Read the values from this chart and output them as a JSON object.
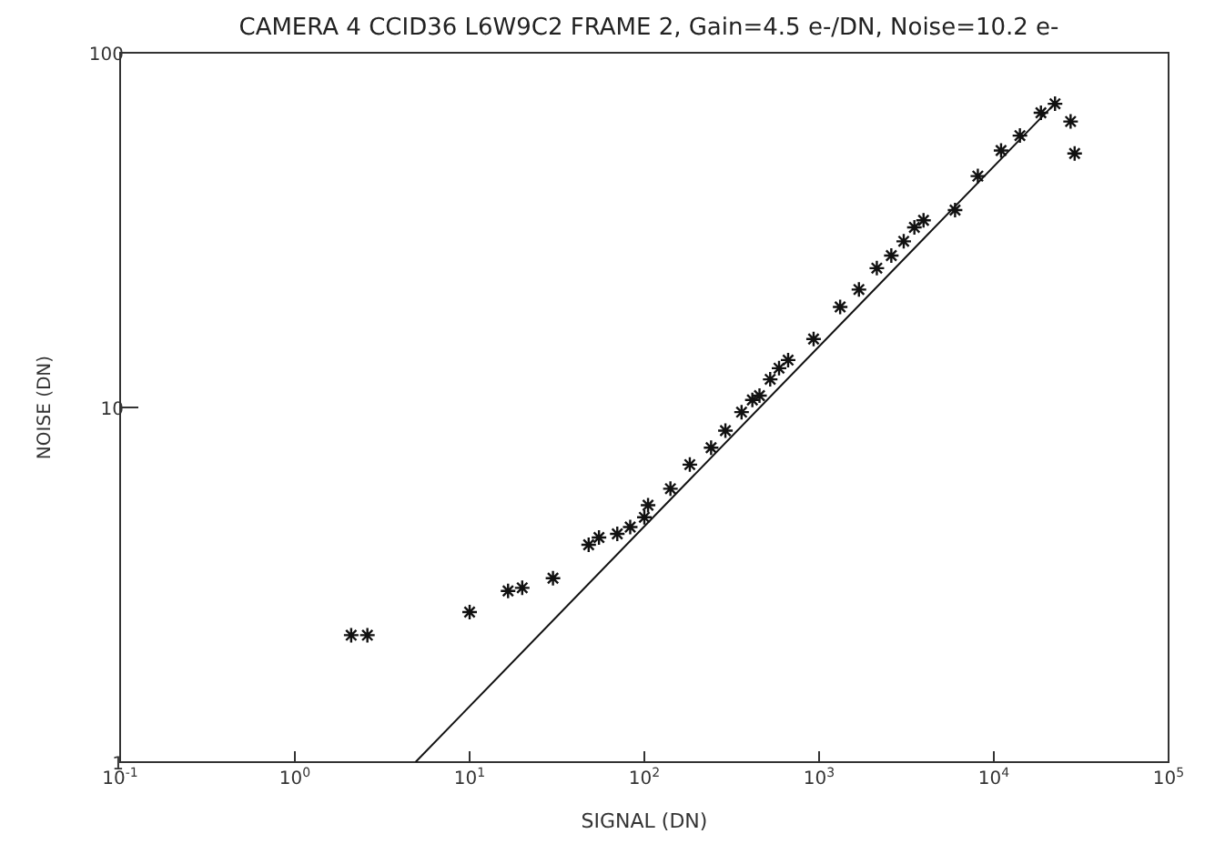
{
  "chart_data": {
    "type": "scatter",
    "title": "CAMERA 4 CCID36 L6W9C2 FRAME 2, Gain=4.5 e-/DN, Noise=10.2 e-",
    "xlabel": "SIGNAL (DN)",
    "ylabel": "NOISE (DN)",
    "log": "xy",
    "grid": false,
    "xlim": [
      0.1,
      100000
    ],
    "xticks": [
      {
        "value": 0.1,
        "label": "10$^{-1}$"
      },
      {
        "value": 1,
        "label": "10$^{0}$"
      },
      {
        "value": 10,
        "label": "10$^{1}$"
      },
      {
        "value": 100,
        "label": "10$^{2}$"
      },
      {
        "value": 1000,
        "label": "10$^{3}$"
      },
      {
        "value": 10000,
        "label": "10$^{4}$"
      },
      {
        "value": 100000,
        "label": "10$^{5}$"
      }
    ],
    "ylim": [
      1,
      100
    ],
    "yticks": [
      1,
      10,
      100
    ],
    "series": [
      {
        "color": "#111111",
        "marker": "cross",
        "x": [
          2.1,
          2.6,
          10,
          16.6,
          20,
          30,
          48,
          55,
          70,
          83,
          100,
          105,
          141,
          182,
          241,
          291,
          360,
          415,
          456,
          525,
          590,
          665,
          930,
          1320,
          1690,
          2140,
          2590,
          3050,
          3510,
          3960,
          6000,
          8100,
          11000,
          14100,
          18600,
          22400,
          27500,
          29000
        ],
        "values": [
          2.28,
          2.28,
          2.65,
          3.04,
          3.1,
          3.3,
          4.1,
          4.3,
          4.4,
          4.6,
          4.9,
          5.3,
          5.9,
          6.9,
          7.7,
          8.6,
          9.7,
          10.5,
          10.8,
          12.0,
          12.9,
          13.6,
          15.6,
          19.2,
          21.5,
          24.7,
          26.8,
          29.4,
          32.2,
          33.7,
          36,
          44.9,
          53,
          58.4,
          67.7,
          71.8,
          64,
          52
        ]
      },
      {
        "color": "#111111",
        "type": "line",
        "marker": "none",
        "x": [
          4.9,
          22400
        ],
        "values": [
          1,
          72
        ]
      }
    ]
  }
}
